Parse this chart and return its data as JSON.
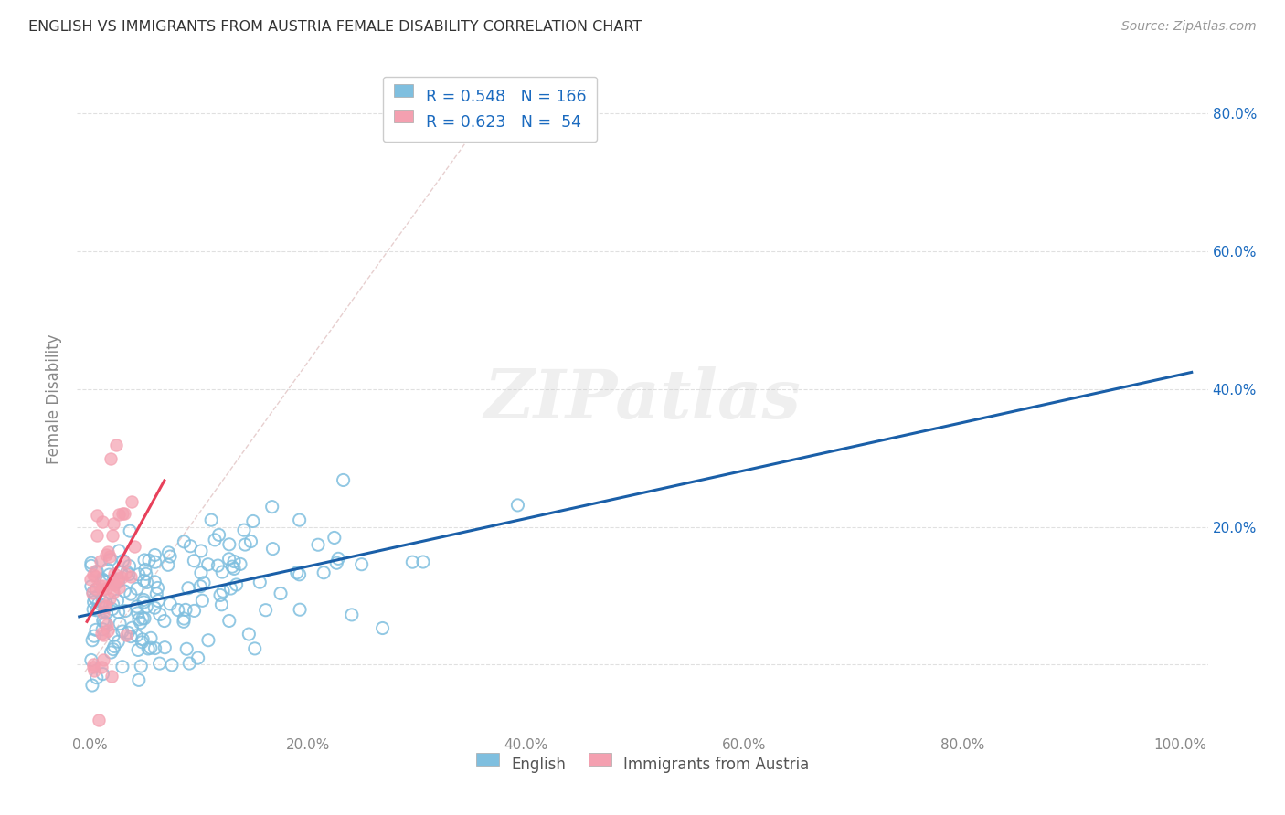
{
  "title": "ENGLISH VS IMMIGRANTS FROM AUSTRIA FEMALE DISABILITY CORRELATION CHART",
  "source": "Source: ZipAtlas.com",
  "ylabel": "Female Disability",
  "legend_english_R": "0.548",
  "legend_english_N": "166",
  "legend_austria_R": "0.623",
  "legend_austria_N": "54",
  "english_color": "#7fbfdf",
  "austria_color": "#f4a0b0",
  "english_line_color": "#1a5fa8",
  "austria_line_color": "#e8405a",
  "diagonal_color": "#cccccc",
  "watermark": "ZIPatlas",
  "legend_color": "#1a6abf",
  "title_color": "#333333",
  "source_color": "#999999",
  "grid_color": "#e0e0e0",
  "tick_color": "#888888"
}
